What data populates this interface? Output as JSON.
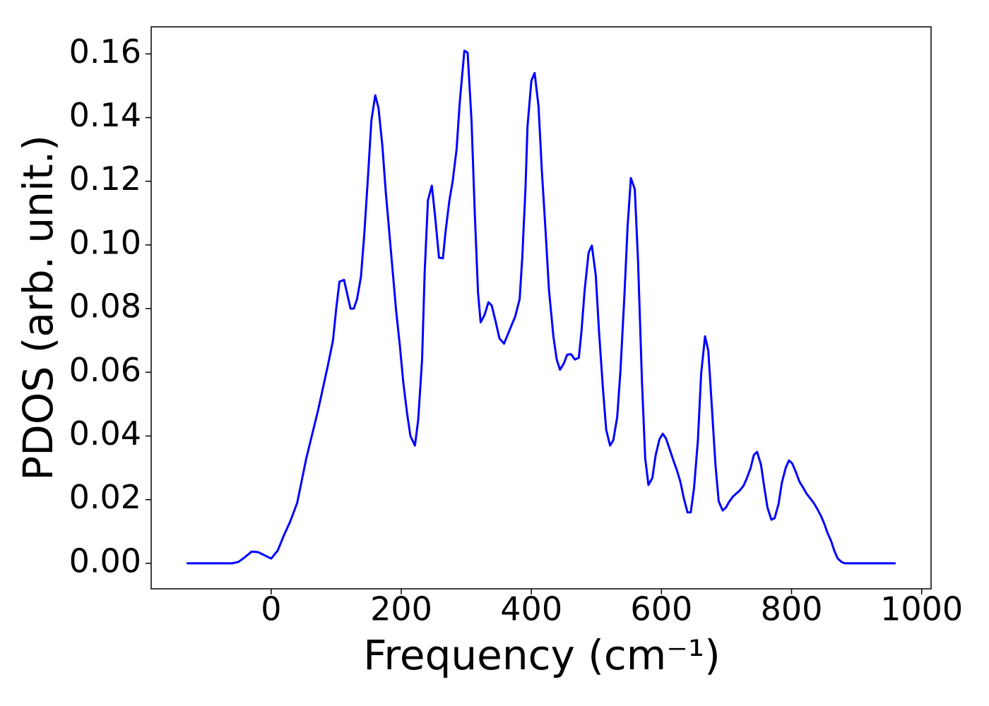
{
  "chart_data": {
    "type": "line",
    "xlabel": "Frequency (cm⁻¹)",
    "ylabel": "PDOS (arb. unit.)",
    "color": "#0000ff",
    "x": [
      -130,
      -100,
      -60,
      -50,
      -40,
      -30,
      -20,
      -10,
      0,
      10,
      20,
      29,
      40,
      54,
      72,
      87,
      95,
      100,
      105,
      112,
      122,
      127,
      132,
      138,
      143,
      149,
      154,
      160,
      165,
      171,
      176,
      182,
      192,
      198,
      203,
      209,
      214,
      221,
      226,
      232,
      236,
      241,
      247,
      252,
      258,
      264,
      268,
      274,
      279,
      285,
      290,
      297,
      302,
      308,
      313,
      318,
      322,
      328,
      334,
      339,
      345,
      351,
      358,
      364,
      371,
      375,
      382,
      386,
      391,
      394,
      400,
      405,
      411,
      416,
      422,
      427,
      434,
      439,
      444,
      450,
      455,
      461,
      467,
      473,
      477,
      482,
      488,
      493,
      499,
      504,
      510,
      515,
      521,
      526,
      532,
      537,
      543,
      548,
      553,
      559,
      564,
      570,
      575,
      580,
      586,
      591,
      597,
      602,
      607,
      613,
      618,
      623,
      629,
      634,
      640,
      645,
      650,
      656,
      661,
      667,
      672,
      677,
      683,
      688,
      694,
      699,
      704,
      710,
      715,
      720,
      726,
      731,
      737,
      742,
      747,
      753,
      758,
      763,
      769,
      774,
      780,
      785,
      791,
      796,
      801,
      807,
      812,
      818,
      823,
      828,
      834,
      839,
      845,
      850,
      855,
      861,
      866,
      871,
      877,
      882,
      900,
      960
    ],
    "values": [
      0,
      0,
      0,
      0.0005,
      0.002,
      0.0037,
      0.0035,
      0.0025,
      0.0015,
      0.004,
      0.009,
      0.013,
      0.019,
      0.033,
      0.048,
      0.062,
      0.07,
      0.08,
      0.0885,
      0.089,
      0.08,
      0.08,
      0.083,
      0.09,
      0.103,
      0.122,
      0.139,
      0.147,
      0.143,
      0.131,
      0.117,
      0.103,
      0.0795,
      0.068,
      0.057,
      0.047,
      0.04,
      0.037,
      0.045,
      0.064,
      0.0916,
      0.114,
      0.1186,
      0.109,
      0.096,
      0.0958,
      0.104,
      0.114,
      0.12,
      0.13,
      0.145,
      0.161,
      0.1604,
      0.139,
      0.11,
      0.085,
      0.0757,
      0.078,
      0.082,
      0.081,
      0.076,
      0.0706,
      0.069,
      0.072,
      0.0755,
      0.0774,
      0.083,
      0.096,
      0.118,
      0.137,
      0.1516,
      0.154,
      0.1436,
      0.1237,
      0.1038,
      0.086,
      0.071,
      0.064,
      0.0608,
      0.0628,
      0.0655,
      0.0657,
      0.064,
      0.0646,
      0.0728,
      0.086,
      0.0976,
      0.0998,
      0.0905,
      0.0728,
      0.055,
      0.042,
      0.037,
      0.0387,
      0.046,
      0.0606,
      0.0839,
      0.106,
      0.121,
      0.1175,
      0.095,
      0.0573,
      0.033,
      0.0246,
      0.0268,
      0.0339,
      0.039,
      0.0407,
      0.0392,
      0.0356,
      0.0325,
      0.0297,
      0.0257,
      0.0208,
      0.016,
      0.016,
      0.0235,
      0.0385,
      0.0595,
      0.0713,
      0.0668,
      0.0507,
      0.031,
      0.0195,
      0.0166,
      0.0175,
      0.0193,
      0.021,
      0.0219,
      0.0228,
      0.0243,
      0.0266,
      0.0299,
      0.034,
      0.035,
      0.031,
      0.024,
      0.0175,
      0.0137,
      0.0142,
      0.0186,
      0.0252,
      0.03,
      0.0323,
      0.0314,
      0.0285,
      0.0257,
      0.0237,
      0.0219,
      0.0206,
      0.019,
      0.0173,
      0.015,
      0.0126,
      0.0097,
      0.0069,
      0.0038,
      0.0015,
      0.0004,
      0,
      0,
      0
    ],
    "xlim": [
      -184.5,
      1014.5
    ],
    "ylim": [
      -0.008,
      0.1685
    ],
    "xticks": [
      0,
      200,
      400,
      600,
      800,
      1000
    ],
    "yticks": [
      {
        "value": 0,
        "label": "0.00"
      },
      {
        "value": 0.02,
        "label": "0.02"
      },
      {
        "value": 0.04,
        "label": "0.04"
      },
      {
        "value": 0.06,
        "label": "0.06"
      },
      {
        "value": 0.08,
        "label": "0.08"
      },
      {
        "value": 0.1,
        "label": "0.10"
      },
      {
        "value": 0.12,
        "label": "0.12"
      },
      {
        "value": 0.14,
        "label": "0.14"
      },
      {
        "value": 0.16,
        "label": "0.16"
      }
    ]
  }
}
